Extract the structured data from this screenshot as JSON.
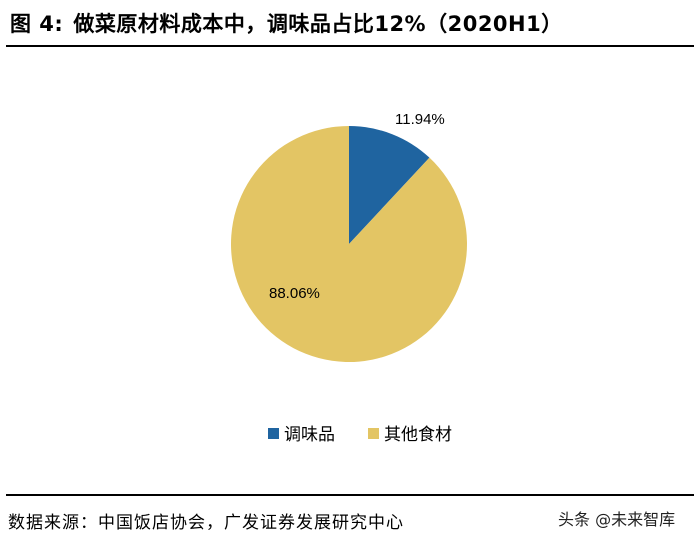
{
  "header": {
    "figure_label": "图 4:",
    "title_text": "做菜原材料成本中，调味品占比12%（2020H1）"
  },
  "chart_data": {
    "type": "pie",
    "categories": [
      "调味品",
      "其他食材"
    ],
    "values": [
      11.94,
      88.06
    ],
    "data_labels": [
      "11.94%",
      "88.06%"
    ],
    "colors": [
      "#1f64a0",
      "#e3c564"
    ],
    "legend_position": "bottom"
  },
  "footer": {
    "source_text": "数据来源：中国饭店协会，广发证券发展研究中心",
    "watermark_text": "头条 @未来智库"
  }
}
